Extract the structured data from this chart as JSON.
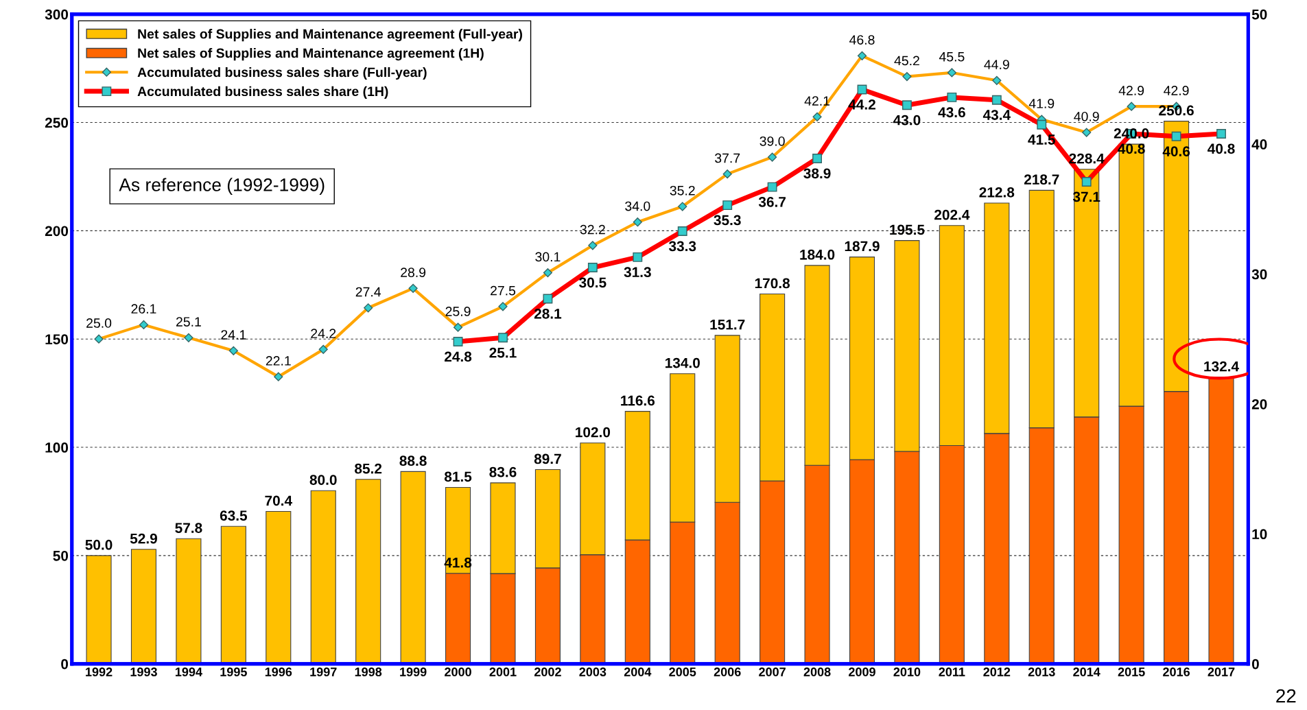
{
  "chart_data": {
    "type": "bar",
    "stacked": true,
    "categories": [
      "1992",
      "1993",
      "1994",
      "1995",
      "1996",
      "1997",
      "1998",
      "1999",
      "2000",
      "2001",
      "2002",
      "2003",
      "2004",
      "2005",
      "2006",
      "2007",
      "2008",
      "2009",
      "2010",
      "2011",
      "2012",
      "2013",
      "2014",
      "2015",
      "2016",
      "2017"
    ],
    "series": [
      {
        "name": "Net sales of Supplies and Maintenance agreement (1H)",
        "color": "#ff6600",
        "values": [
          null,
          null,
          null,
          null,
          null,
          null,
          null,
          null,
          41.8,
          41.7,
          44.3,
          50.4,
          57.2,
          65.5,
          74.6,
          84.5,
          91.7,
          94.3,
          98.1,
          100.8,
          106.4,
          109.0,
          114.0,
          119.0,
          125.8,
          132.4
        ],
        "value_labels": [
          null,
          null,
          null,
          null,
          null,
          null,
          null,
          null,
          "41.8",
          null,
          null,
          null,
          null,
          null,
          null,
          null,
          null,
          null,
          null,
          null,
          null,
          null,
          null,
          null,
          null,
          "132.4"
        ]
      },
      {
        "name": "Net sales of Supplies and Maintenance agreement (Full-year)",
        "color": "#ffc000",
        "values": [
          50.0,
          52.9,
          57.8,
          63.5,
          70.4,
          80.0,
          85.2,
          88.8,
          39.7,
          41.9,
          45.4,
          51.6,
          59.4,
          68.5,
          77.1,
          86.3,
          92.3,
          93.6,
          97.4,
          101.6,
          106.4,
          109.7,
          114.4,
          121.0,
          124.8,
          null
        ]
      },
      {
        "name": "Accumulated business sales share (Full-year)",
        "type": "line",
        "axis": "y2",
        "color": "#ffa500",
        "marker": "diamond",
        "values": [
          25.0,
          26.1,
          25.1,
          24.1,
          22.1,
          24.2,
          27.4,
          28.9,
          25.9,
          27.5,
          30.1,
          32.2,
          34.0,
          35.2,
          37.7,
          39.0,
          42.1,
          46.8,
          45.2,
          45.5,
          44.9,
          41.9,
          40.9,
          42.9,
          42.9,
          null
        ],
        "value_labels": [
          "25.0",
          "26.1",
          "25.1",
          "24.1",
          "22.1",
          "24.2",
          "27.4",
          "28.9",
          "25.9",
          "27.5",
          "30.1",
          "32.2",
          "34.0",
          "35.2",
          "37.7",
          "39.0",
          "42.1",
          "46.8",
          "45.2",
          "45.5",
          "44.9",
          "41.9",
          "40.9",
          "42.9",
          "42.9",
          null
        ]
      },
      {
        "name": "Accumulated business sales share (1H)",
        "type": "line",
        "axis": "y2",
        "color": "#ff0000",
        "marker": "square",
        "values": [
          null,
          null,
          null,
          null,
          null,
          null,
          null,
          null,
          24.8,
          25.1,
          28.1,
          30.5,
          31.3,
          33.3,
          35.3,
          36.7,
          38.9,
          44.2,
          43.0,
          43.6,
          43.4,
          41.5,
          37.1,
          40.8,
          40.6,
          40.8
        ],
        "value_labels": [
          null,
          null,
          null,
          null,
          null,
          null,
          null,
          null,
          "24.8",
          "25.1",
          "28.1",
          "30.5",
          "31.3",
          "33.3",
          "35.3",
          "36.7",
          "38.9",
          "44.2",
          "43.0",
          "43.6",
          "43.4",
          "41.5",
          "37.1",
          "40.8",
          "40.6",
          "40.8"
        ]
      }
    ],
    "totals": [
      "50.0",
      "52.9",
      "57.8",
      "63.5",
      "70.4",
      "80.0",
      "85.2",
      "88.8",
      "81.5",
      "83.6",
      "89.7",
      "102.0",
      "116.6",
      "134.0",
      "151.7",
      "170.8",
      "184.0",
      "187.9",
      "195.5",
      "202.4",
      "212.8",
      "218.7",
      "228.4",
      "240.0",
      "250.6",
      null
    ],
    "ylim": [
      0,
      300
    ],
    "yticks": [
      0,
      50,
      100,
      150,
      200,
      250,
      300
    ],
    "y2lim": [
      0,
      50
    ],
    "y2ticks": [
      0,
      10,
      20,
      30,
      40,
      50
    ],
    "grid": "y",
    "legend": "top left",
    "line_style": "solid",
    "annotations": [
      "As reference (1992-1999)",
      "22"
    ]
  }
}
